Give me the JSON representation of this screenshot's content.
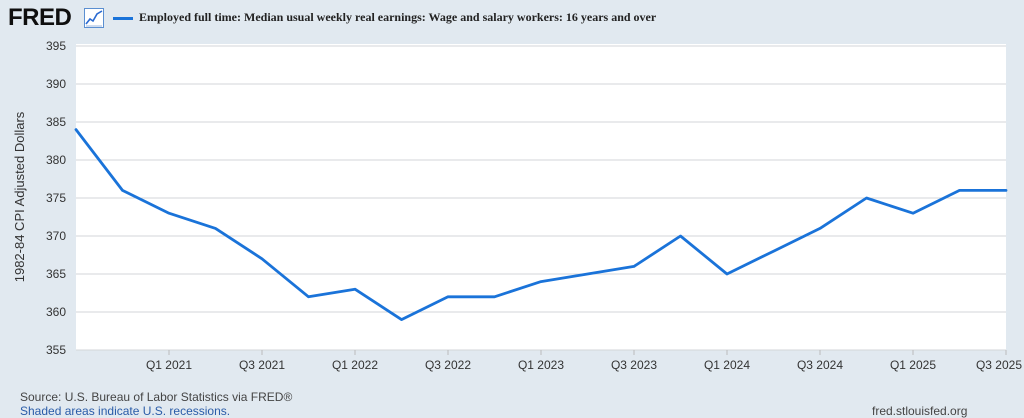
{
  "header": {
    "logo_text": "FRED",
    "legend_label": "Employed full time: Median usual weekly real earnings: Wage and salary workers: 16 years and over"
  },
  "chart_data": {
    "type": "line",
    "title": "",
    "xlabel": "",
    "ylabel": "1982-84 CPI Adjusted Dollars",
    "ylim": [
      355,
      395
    ],
    "yticks": [
      395,
      390,
      385,
      380,
      375,
      370,
      365,
      360,
      355
    ],
    "xtick_labels": [
      "Q1 2021",
      "Q3 2021",
      "Q1 2022",
      "Q3 2022",
      "Q1 2023",
      "Q3 2023",
      "Q1 2024",
      "Q3 2024",
      "Q1 2025",
      "Q3 2025"
    ],
    "grid": true,
    "line_color": "#1a73d9",
    "series": [
      {
        "name": "Employed full time: Median usual weekly real earnings: Wage and salary workers: 16 years and over",
        "x": [
          "2020 Q3",
          "2020 Q4",
          "2021 Q1",
          "2021 Q2",
          "2021 Q3",
          "2021 Q4",
          "2022 Q1",
          "2022 Q2",
          "2022 Q3",
          "2022 Q4",
          "2023 Q1",
          "2023 Q2",
          "2023 Q3",
          "2023 Q4",
          "2024 Q1",
          "2024 Q2",
          "2024 Q3",
          "2024 Q4",
          "2025 Q1",
          "2025 Q2",
          "2025 Q3"
        ],
        "values": [
          384,
          376,
          373,
          371,
          367,
          362,
          363,
          359,
          362,
          362,
          364,
          365,
          366,
          370,
          365,
          368,
          371,
          375,
          373,
          376,
          376
        ]
      }
    ]
  },
  "footer": {
    "source": "Source: U.S. Bureau of Labor Statistics via FRED®",
    "recession_note": "Shaded areas indicate U.S. recessions.",
    "site": "fred.stlouisfed.org"
  }
}
